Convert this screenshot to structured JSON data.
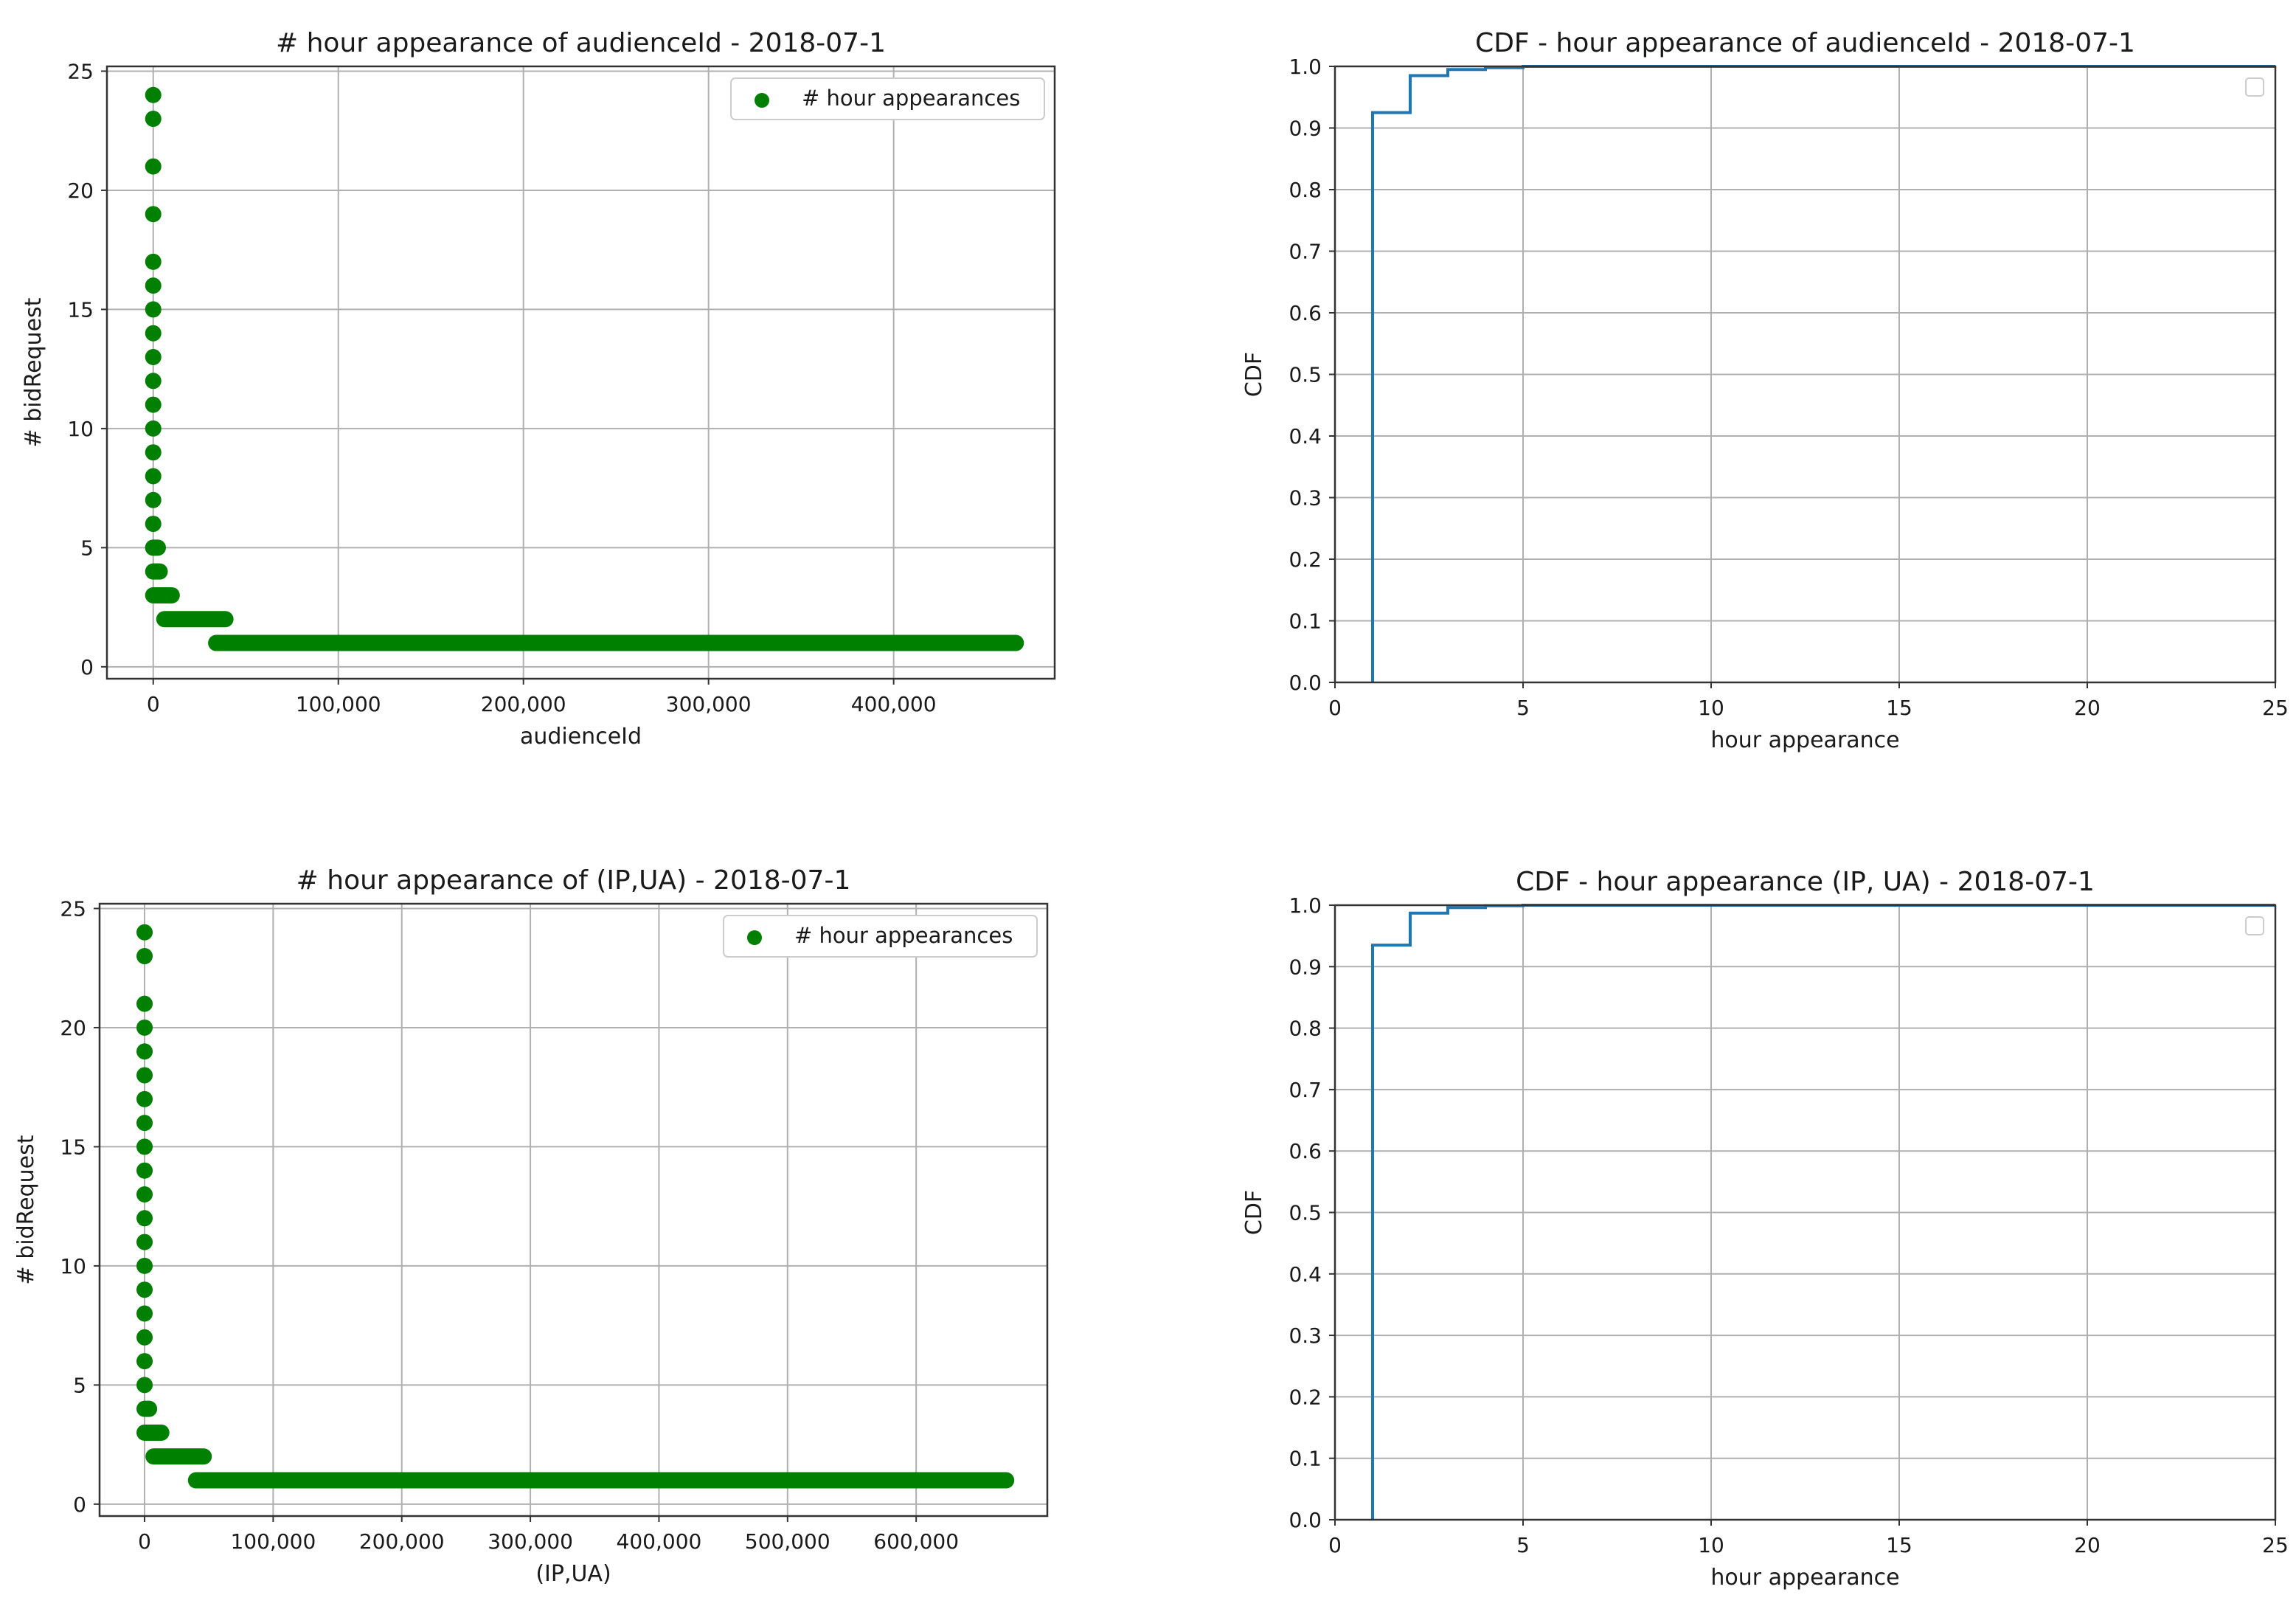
{
  "figure": {
    "background": "#ffffff"
  },
  "chart_data": [
    {
      "id": "scatter-audience",
      "type": "scatter",
      "title": "# hour appearance of audienceId - 2018-07-1",
      "xlabel": "audienceId",
      "ylabel": "# bidRequest",
      "xlim": [
        -25000,
        487000
      ],
      "ylim": [
        -0.5,
        25.2
      ],
      "xticks": [
        0,
        100000,
        200000,
        300000,
        400000
      ],
      "xtick_labels": [
        "0",
        "100,000",
        "200,000",
        "300,000",
        "400,000"
      ],
      "yticks": [
        0,
        5,
        10,
        15,
        20,
        25
      ],
      "ytick_labels": [
        "0",
        "5",
        "10",
        "15",
        "20",
        "25"
      ],
      "grid": true,
      "legend": {
        "position": "top-right",
        "entries": [
          "# hour appearances"
        ]
      },
      "series": [
        {
          "name": "# hour appearances",
          "color": "#008000",
          "points": [
            [
              0,
              24
            ],
            [
              0,
              23
            ],
            [
              0,
              21
            ],
            [
              0,
              19
            ],
            [
              0,
              17
            ],
            [
              0,
              16
            ],
            [
              0,
              15
            ],
            [
              0,
              14
            ],
            [
              0,
              13
            ],
            [
              0,
              12
            ],
            [
              0,
              11
            ],
            [
              0,
              10
            ],
            [
              0,
              9
            ],
            [
              0,
              8
            ],
            [
              0,
              7
            ],
            [
              0,
              6
            ],
            [
              0,
              5
            ]
          ],
          "segments": [
            {
              "y": 5,
              "x_start": 0,
              "x_end": 2500
            },
            {
              "y": 4,
              "x_start": 0,
              "x_start_alt": 0,
              "x_end": 3500
            },
            {
              "y": 3,
              "x_start": 0,
              "x_end": 10000
            },
            {
              "y": 2,
              "x_start": 6000,
              "x_end": 39000
            },
            {
              "y": 1,
              "x_start": 34000,
              "x_end": 466000
            }
          ]
        }
      ]
    },
    {
      "id": "cdf-audience",
      "type": "line",
      "title": "CDF - hour appearance of audienceId - 2018-07-1",
      "xlabel": "hour appearance",
      "ylabel": "CDF",
      "xlim": [
        0,
        25
      ],
      "ylim": [
        0,
        1
      ],
      "xticks": [
        0,
        5,
        10,
        15,
        20,
        25
      ],
      "xtick_labels": [
        "0",
        "5",
        "10",
        "15",
        "20",
        "25"
      ],
      "yticks": [
        0,
        0.1,
        0.2,
        0.3,
        0.4,
        0.5,
        0.6,
        0.7,
        0.8,
        0.9,
        1.0
      ],
      "ytick_labels": [
        "0.0",
        "0.1",
        "0.2",
        "0.3",
        "0.4",
        "0.5",
        "0.6",
        "0.7",
        "0.8",
        "0.9",
        "1.0"
      ],
      "grid": true,
      "legend": {
        "position": "top-right",
        "entries": []
      },
      "series": [
        {
          "color": "#1f77b4",
          "step_points": [
            [
              1,
              0
            ],
            [
              1,
              0.925
            ],
            [
              2,
              0.925
            ],
            [
              2,
              0.985
            ],
            [
              3,
              0.985
            ],
            [
              3,
              0.995
            ],
            [
              4,
              0.995
            ],
            [
              4,
              0.998
            ],
            [
              5,
              0.998
            ],
            [
              5,
              1.0
            ],
            [
              25,
              1.0
            ]
          ]
        }
      ]
    },
    {
      "id": "scatter-ipua",
      "type": "scatter",
      "title": "# hour appearance of (IP,UA) - 2018-07-1",
      "xlabel": "(IP,UA)",
      "ylabel": "# bidRequest",
      "xlim": [
        -35000,
        702000
      ],
      "ylim": [
        -0.5,
        25.2
      ],
      "xticks": [
        0,
        100000,
        200000,
        300000,
        400000,
        500000,
        600000
      ],
      "xtick_labels": [
        "0",
        "100,000",
        "200,000",
        "300,000",
        "400,000",
        "500,000",
        "600,000"
      ],
      "yticks": [
        0,
        5,
        10,
        15,
        20,
        25
      ],
      "ytick_labels": [
        "0",
        "5",
        "10",
        "15",
        "20",
        "25"
      ],
      "grid": true,
      "legend": {
        "position": "top-right",
        "entries": [
          "# hour appearances"
        ]
      },
      "series": [
        {
          "name": "# hour appearances",
          "color": "#008000",
          "points": [
            [
              0,
              24
            ],
            [
              0,
              23
            ],
            [
              0,
              21
            ],
            [
              0,
              20
            ],
            [
              0,
              19
            ],
            [
              0,
              18
            ],
            [
              0,
              17
            ],
            [
              0,
              16
            ],
            [
              0,
              15
            ],
            [
              0,
              14
            ],
            [
              0,
              13
            ],
            [
              0,
              12
            ],
            [
              0,
              11
            ],
            [
              0,
              10
            ],
            [
              0,
              9
            ],
            [
              0,
              8
            ],
            [
              0,
              7
            ],
            [
              0,
              6
            ],
            [
              0,
              5
            ]
          ],
          "segments": [
            {
              "y": 4,
              "x_start": 0,
              "x_end": 3500
            },
            {
              "y": 3,
              "x_start": 0,
              "x_end": 13000
            },
            {
              "y": 2,
              "x_start": 7000,
              "x_end": 46000
            },
            {
              "y": 1,
              "x_start": 40000,
              "x_end": 670000
            }
          ]
        }
      ]
    },
    {
      "id": "cdf-ipua",
      "type": "line",
      "title": "CDF - hour appearance (IP, UA) - 2018-07-1",
      "xlabel": "hour appearance",
      "ylabel": "CDF",
      "xlim": [
        0,
        25
      ],
      "ylim": [
        0,
        1
      ],
      "xticks": [
        0,
        5,
        10,
        15,
        20,
        25
      ],
      "xtick_labels": [
        "0",
        "5",
        "10",
        "15",
        "20",
        "25"
      ],
      "yticks": [
        0,
        0.1,
        0.2,
        0.3,
        0.4,
        0.5,
        0.6,
        0.7,
        0.8,
        0.9,
        1.0
      ],
      "ytick_labels": [
        "0.0",
        "0.1",
        "0.2",
        "0.3",
        "0.4",
        "0.5",
        "0.6",
        "0.7",
        "0.8",
        "0.9",
        "1.0"
      ],
      "grid": true,
      "legend": {
        "position": "top-right",
        "entries": []
      },
      "series": [
        {
          "color": "#1f77b4",
          "step_points": [
            [
              1,
              0
            ],
            [
              1,
              0.935
            ],
            [
              2,
              0.935
            ],
            [
              2,
              0.987
            ],
            [
              3,
              0.987
            ],
            [
              3,
              0.996
            ],
            [
              4,
              0.996
            ],
            [
              4,
              0.999
            ],
            [
              5,
              0.999
            ],
            [
              5,
              1.0
            ],
            [
              25,
              1.0
            ]
          ]
        }
      ]
    }
  ]
}
